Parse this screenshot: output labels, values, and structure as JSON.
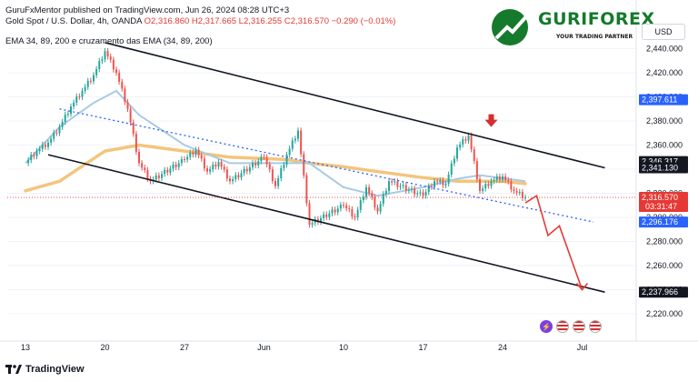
{
  "header": {
    "publisher": "GuruFxMentor published on TradingView.com, Jun 26, 2024 08:28 UTC+3",
    "symbol": "Gold Spot / U.S. Dollar, 4h, OANDA",
    "ohlc": "O2,316.860  H2,317.665  L2,316.255  C2,316.570  −0.290 (−0.01%)",
    "indicator": "EMA 34, 89, 200 e cruzamento das EMA (34, 89, 200)"
  },
  "currency": "USD",
  "logo": {
    "name": "GURIFOREX",
    "tagline": "YOUR TRADING PARTNER"
  },
  "footer": {
    "brand": "TradingView"
  },
  "icons": [
    "tradingview-logo-icon",
    "lightning-icon",
    "us-flag-icon"
  ],
  "colors": {
    "up": "#26a69a",
    "down": "#ef5350",
    "channel": "#131722",
    "midline": "#2962ff",
    "ema_fast": "#a7cbe6",
    "ema_slow": "#f3c57b",
    "forecast": "#e53935",
    "arrow": "#d32f2f"
  },
  "chart_data": {
    "type": "candlestick",
    "x_ticks": [
      "13",
      "20",
      "27",
      "Jun",
      "10",
      "17",
      "24",
      "Jul"
    ],
    "y_ticks": [
      "2,440.000",
      "2,420.000",
      "2,400.000",
      "2,380.000",
      "2,360.000",
      "2,340.000",
      "2,320.000",
      "2,300.000",
      "2,280.000",
      "2,260.000",
      "2,240.000",
      "2,220.000"
    ],
    "y_tick_values": [
      2440,
      2420,
      2400,
      2380,
      2360,
      2340,
      2320,
      2300,
      2280,
      2260,
      2240,
      2220
    ],
    "ylim": [
      2210,
      2450
    ],
    "price_labels": [
      {
        "value": 2397.611,
        "text": "2,397.611",
        "color": "#2962ff"
      },
      {
        "value": 2346.317,
        "text": "2,346.317",
        "color": "#131722"
      },
      {
        "value": 2341.13,
        "text": "2,341.130",
        "color": "#131722"
      },
      {
        "value": 2316.57,
        "text": "2,316.570",
        "sub": "03:31:47",
        "color": "#e53935"
      },
      {
        "value": 2296.176,
        "text": "2,296.176",
        "color": "#2962ff"
      },
      {
        "value": 2237.966,
        "text": "2,237.966",
        "color": "#131722"
      }
    ],
    "close_path": [
      [
        "May 13",
        2345
      ],
      [
        "May 14",
        2355
      ],
      [
        "May 15",
        2362
      ],
      [
        "May 16",
        2375
      ],
      [
        "May 17",
        2392
      ],
      [
        "May 18",
        2405
      ],
      [
        "May 19",
        2418
      ],
      [
        "May 20",
        2438
      ],
      [
        "May 21",
        2420
      ],
      [
        "May 22",
        2390
      ],
      [
        "May 23",
        2345
      ],
      [
        "May 24",
        2330
      ],
      [
        "May 27",
        2348
      ],
      [
        "May 28",
        2356
      ],
      [
        "May 29",
        2338
      ],
      [
        "May 30",
        2346
      ],
      [
        "May 31",
        2330
      ],
      [
        "Jun 3",
        2350
      ],
      [
        "Jun 4",
        2326
      ],
      [
        "Jun 5",
        2352
      ],
      [
        "Jun 6",
        2372
      ],
      [
        "Jun 7",
        2294
      ],
      [
        "Jun 10",
        2310
      ],
      [
        "Jun 11",
        2300
      ],
      [
        "Jun 12",
        2325
      ],
      [
        "Jun 13",
        2305
      ],
      [
        "Jun 14",
        2330
      ],
      [
        "Jun 17",
        2318
      ],
      [
        "Jun 18",
        2330
      ],
      [
        "Jun 19",
        2328
      ],
      [
        "Jun 20",
        2358
      ],
      [
        "Jun 21",
        2368
      ],
      [
        "Jun 22",
        2322
      ],
      [
        "Jun 23",
        2330
      ],
      [
        "Jun 24",
        2334
      ],
      [
        "Jun 25",
        2322
      ],
      [
        "Jun 26",
        2316.57
      ]
    ],
    "channel_lines": [
      {
        "name": "upper",
        "from": [
          "May 20",
          2445
        ],
        "to": [
          "Jul 3",
          2341.13
        ]
      },
      {
        "name": "lower",
        "from": [
          "May 15",
          2352
        ],
        "to": [
          "Jul 3",
          2237.966
        ]
      },
      {
        "name": "mid",
        "dashed": true,
        "from": [
          "May 16",
          2390
        ],
        "to": [
          "Jul 2",
          2296.176
        ]
      }
    ],
    "forecast_path": [
      [
        "Jun 26",
        2312
      ],
      [
        "Jun 27",
        2318
      ],
      [
        "Jun 28",
        2285
      ],
      [
        "Jun 29",
        2293
      ],
      [
        "Jul 1",
        2240
      ]
    ],
    "ema_fast_path": [
      [
        "May 13",
        2345
      ],
      [
        "May 16",
        2375
      ],
      [
        "May 19",
        2395
      ],
      [
        "May 21",
        2405
      ],
      [
        "May 23",
        2385
      ],
      [
        "May 27",
        2360
      ],
      [
        "May 31",
        2345
      ],
      [
        "Jun 5",
        2345
      ],
      [
        "Jun 7",
        2345
      ],
      [
        "Jun 10",
        2325
      ],
      [
        "Jun 13",
        2318
      ],
      [
        "Jun 17",
        2325
      ],
      [
        "Jun 20",
        2332
      ],
      [
        "Jun 22",
        2335
      ],
      [
        "Jun 26",
        2330
      ]
    ],
    "ema_slow_path": [
      [
        "May 13",
        2322
      ],
      [
        "May 16",
        2330
      ],
      [
        "May 20",
        2355
      ],
      [
        "May 23",
        2360
      ],
      [
        "May 27",
        2355
      ],
      [
        "May 31",
        2350
      ],
      [
        "Jun 5",
        2348
      ],
      [
        "Jun 7",
        2345
      ],
      [
        "Jun 10",
        2342
      ],
      [
        "Jun 13",
        2338
      ],
      [
        "Jun 17",
        2333
      ],
      [
        "Jun 20",
        2330
      ],
      [
        "Jun 24",
        2330
      ],
      [
        "Jun 26",
        2328
      ]
    ],
    "annotation_arrow": {
      "at": [
        "Jun 23",
        2378
      ],
      "direction": "down"
    }
  }
}
